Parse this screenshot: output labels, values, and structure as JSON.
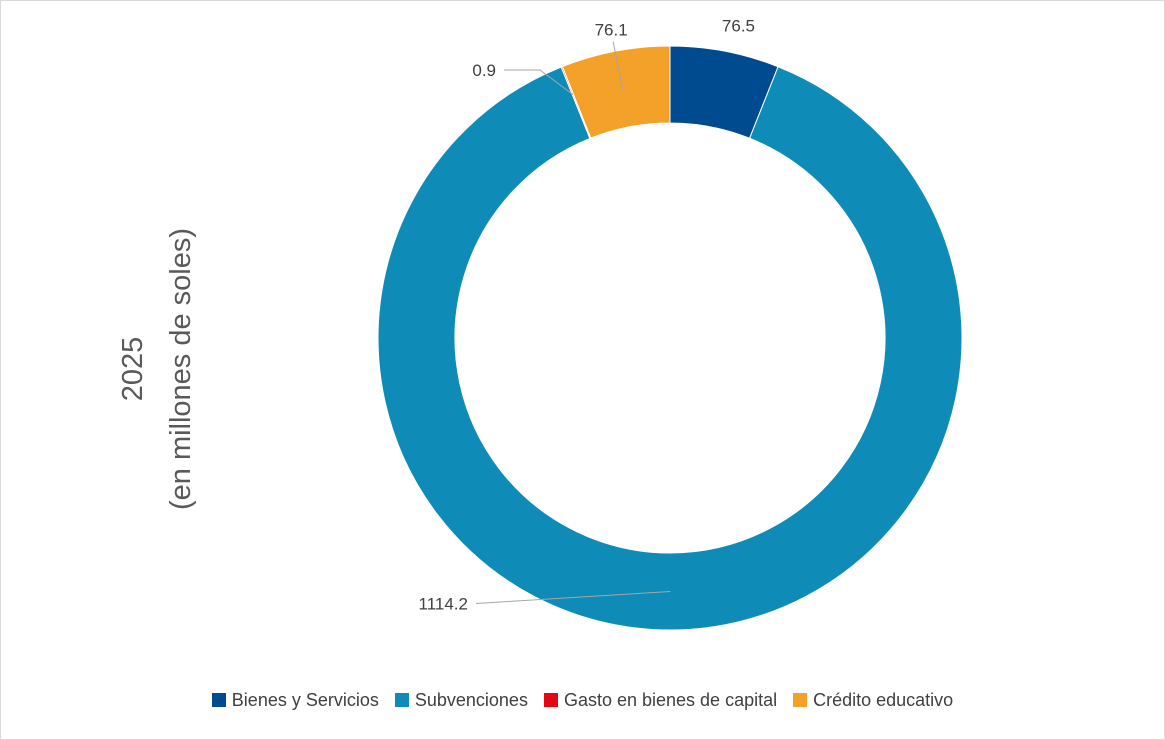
{
  "chart_data": {
    "type": "pie",
    "donut": true,
    "title": "",
    "ylabel_line1": "2025",
    "ylabel_line2": "(en millones de soles)",
    "legend_position": "bottom",
    "categories": [
      "Bienes y Servicios",
      "Subvenciones",
      "Gasto en bienes de capital",
      "Crédito educativo"
    ],
    "values": [
      76.5,
      1114.2,
      0.9,
      76.1
    ],
    "value_labels": [
      "76.5",
      "1114.2",
      "0.9",
      "76.1"
    ],
    "colors": [
      "#004a8f",
      "#0e8cb7",
      "#e30613",
      "#f4a12a"
    ]
  }
}
